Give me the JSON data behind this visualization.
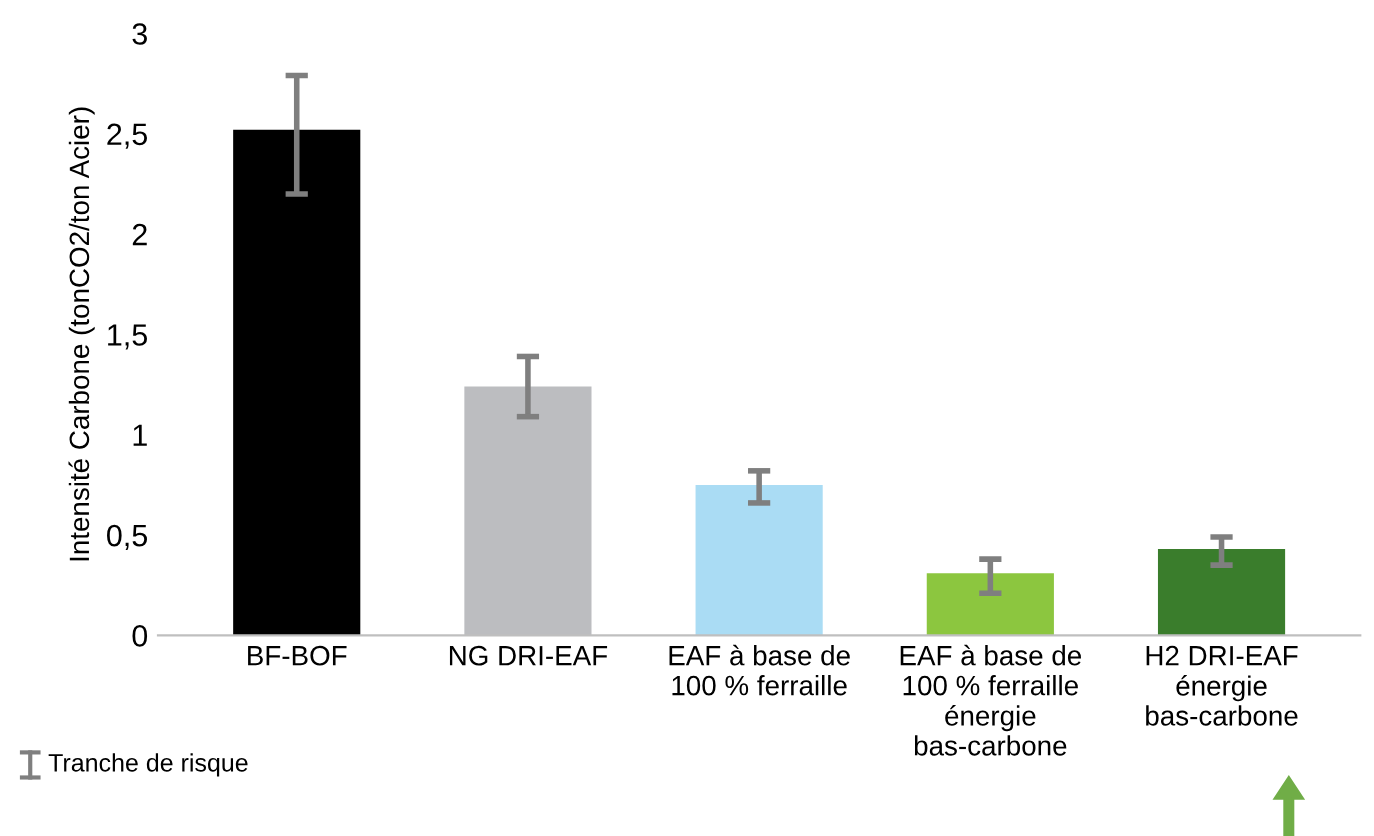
{
  "chart_data": {
    "type": "bar",
    "ylabel": "Intensité Carbone (tonCO2/ton Acier)",
    "categories": [
      "BF-BOF",
      "NG DRI-EAF",
      "EAF à base de\n100 % ferraille",
      "EAF à base de\n100 % ferraille\nénergie\nbas-carbone",
      "H2 DRI-EAF\nénergie\nbas-carbone"
    ],
    "values": [
      2.52,
      1.24,
      0.75,
      0.31,
      0.43
    ],
    "colors": [
      "#000000",
      "#bcbdc0",
      "#aadcf4",
      "#8cc63f",
      "#3a7d2c"
    ],
    "errors": [
      [
        2.2,
        2.79
      ],
      [
        1.09,
        1.39
      ],
      [
        0.66,
        0.82
      ],
      [
        0.21,
        0.38
      ],
      [
        0.35,
        0.49
      ]
    ],
    "ylim": [
      0,
      3
    ],
    "yticks": [
      0,
      {
        "value": 0.5,
        "label": "0,5"
      },
      1,
      {
        "value": 1.5,
        "label": "1,5"
      },
      2,
      {
        "value": 2.5,
        "label": "2,5"
      },
      3
    ],
    "annotations": [
      "Tranche de risque"
    ]
  }
}
